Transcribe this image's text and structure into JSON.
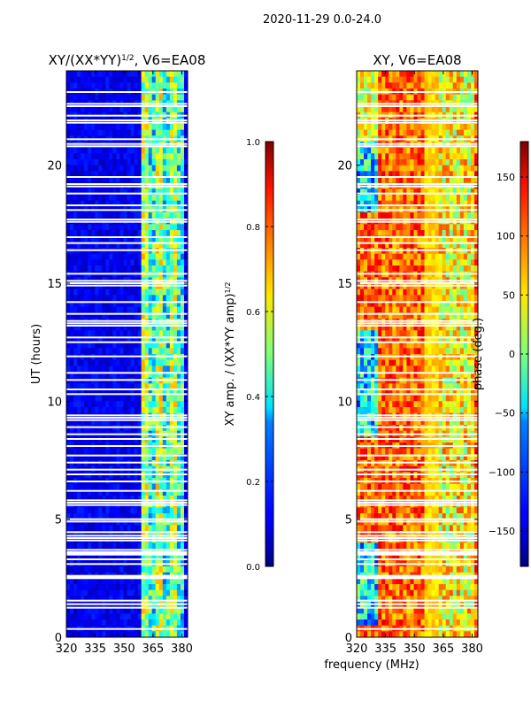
{
  "figure": {
    "suptitle": "2020-11-29 0.0-24.0",
    "xlabel": "frequency (MHz)"
  },
  "chart_data": [
    {
      "type": "heatmap",
      "title_main": "XY/(XX*YY)",
      "title_sup": "1/2",
      "title_tail": ", V6=EA08",
      "xlim": [
        320,
        383
      ],
      "ylim": [
        0,
        24
      ],
      "xticks": [
        "320",
        "335",
        "350",
        "365",
        "380"
      ],
      "xtick_values": [
        320,
        335,
        350,
        365,
        380
      ],
      "yticks": [
        "0",
        "5",
        "10",
        "15",
        "20"
      ],
      "ytick_values": [
        0,
        5,
        10,
        15,
        20
      ],
      "ylabel": "UT (hours)",
      "colorbar": {
        "label_main": "XY amp. / (XX*YY amp)",
        "label_sup": "1/2",
        "range": [
          0.0,
          1.0
        ],
        "ticks": [
          "0.0",
          "0.2",
          "0.4",
          "0.6",
          "0.8",
          "1.0"
        ],
        "tick_values": [
          0.0,
          0.2,
          0.4,
          0.6,
          0.8,
          1.0
        ],
        "colormap": "jet"
      }
    },
    {
      "type": "heatmap",
      "title": "XY, V6=EA08",
      "xlim": [
        320,
        383
      ],
      "ylim": [
        0,
        24
      ],
      "xticks": [
        "320",
        "335",
        "350",
        "365",
        "380"
      ],
      "xtick_values": [
        320,
        335,
        350,
        365,
        380
      ],
      "yticks": [
        "0",
        "5",
        "10",
        "15",
        "20"
      ],
      "ytick_values": [
        0,
        5,
        10,
        15,
        20
      ],
      "colorbar": {
        "label": "phase (deg.)",
        "range": [
          -180,
          180
        ],
        "ticks": [
          "−150",
          "−100",
          "−50",
          "0",
          "50",
          "100",
          "150"
        ],
        "tick_values": [
          -150,
          -100,
          -50,
          0,
          50,
          100,
          150
        ],
        "colormap": "jet"
      }
    }
  ],
  "gaps_hours": [
    0.35,
    1.25,
    1.4,
    1.55,
    2.5,
    2.55,
    2.6,
    3.1,
    3.3,
    3.5,
    3.55,
    3.6,
    3.7,
    4.1,
    4.2,
    4.3,
    4.45,
    4.9,
    5.0,
    5.6,
    5.7,
    5.8,
    6.2,
    6.6,
    6.9,
    7.1,
    7.4,
    7.7,
    8.1,
    8.4,
    8.6,
    8.9,
    9.2,
    9.3,
    9.4,
    10.3,
    10.5,
    10.9,
    11.2,
    11.9,
    12.5,
    12.7,
    13.2,
    13.3,
    13.4,
    13.7,
    14.2,
    14.9,
    15.0,
    15.1,
    15.4,
    16.4,
    16.7,
    16.95,
    17.6,
    17.7,
    18.1,
    18.3,
    18.8,
    19.1,
    19.2,
    19.5,
    20.8,
    20.9,
    21.1,
    21.8,
    21.9,
    22.1,
    22.5,
    22.6,
    23.1
  ]
}
